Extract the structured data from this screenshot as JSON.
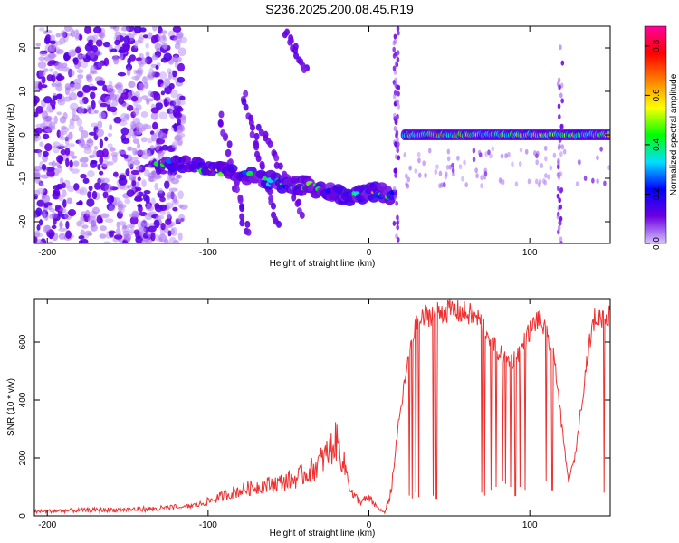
{
  "figure": {
    "title": "S236.2025.200.08.45.R19"
  },
  "chart_data": [
    {
      "type": "heatmap",
      "name": "spectrogram",
      "xlabel": "Height of straight line (km)",
      "ylabel": "Frequency (Hz)",
      "xlim": [
        -208,
        150
      ],
      "ylim": [
        -25,
        25
      ],
      "xticks": [
        -200,
        -100,
        0,
        100
      ],
      "yticks": [
        -20,
        -10,
        0,
        10,
        20
      ],
      "colorbar": {
        "label": "Normalized spectral amplitude",
        "range": [
          0.0,
          0.88
        ],
        "ticks": [
          "0.0",
          "0.2",
          "0.4",
          "0.6",
          "0.8"
        ],
        "colormap": [
          "#d7c4ff",
          "#6b00e0",
          "#0000ff",
          "#00e0ff",
          "#00ff00",
          "#ffff00",
          "#ff8000",
          "#ff0000",
          "#ff00a0"
        ]
      },
      "features": {
        "noise_region_x": [
          -208,
          -125
        ],
        "main_track": {
          "x": [
            -130,
            -110,
            -95,
            -85,
            -70,
            -55,
            -45,
            -35,
            -25,
            -15,
            -5,
            5,
            15
          ],
          "y": [
            -6,
            -7,
            -8,
            -9,
            -9.5,
            -11,
            -11.5,
            -12,
            -13,
            -14,
            -14,
            -13,
            -14
          ]
        },
        "steady_line": {
          "x_range": [
            22,
            150
          ],
          "y": 0
        },
        "vertical_band_x": [
          17,
          119
        ]
      }
    },
    {
      "type": "line",
      "name": "snr",
      "xlabel": "Height of straight line (km)",
      "ylabel": "SNR (10 * v/v)",
      "xlim": [
        -208,
        150
      ],
      "ylim": [
        0,
        750
      ],
      "xticks": [
        -200,
        -100,
        0,
        100
      ],
      "yticks": [
        0,
        200,
        400,
        600
      ],
      "color": "#ee3030",
      "envelope_x": [
        -208,
        -190,
        -170,
        -150,
        -130,
        -115,
        -105,
        -95,
        -85,
        -75,
        -65,
        -55,
        -45,
        -35,
        -28,
        -20,
        -14,
        -10,
        -5,
        0,
        5,
        10,
        14,
        18,
        22,
        26,
        30,
        35,
        40,
        45,
        50,
        55,
        60,
        65,
        70,
        75,
        80,
        85,
        90,
        95,
        100,
        105,
        108,
        112,
        116,
        120,
        124,
        128,
        132,
        136,
        140,
        145,
        150
      ],
      "envelope_y": [
        15,
        18,
        20,
        22,
        25,
        30,
        40,
        60,
        80,
        95,
        105,
        115,
        130,
        160,
        200,
        260,
        150,
        70,
        50,
        60,
        30,
        10,
        90,
        300,
        450,
        600,
        660,
        690,
        700,
        705,
        710,
        705,
        700,
        690,
        670,
        620,
        570,
        540,
        540,
        580,
        640,
        680,
        660,
        600,
        520,
        300,
        120,
        200,
        380,
        560,
        680,
        690,
        690
      ],
      "dropouts": [
        {
          "x": 25,
          "y": 70
        },
        {
          "x": 27,
          "y": 60
        },
        {
          "x": 29,
          "y": 80
        },
        {
          "x": 31,
          "y": 65
        },
        {
          "x": 40,
          "y": 70
        },
        {
          "x": 42,
          "y": 60
        },
        {
          "x": 70,
          "y": 80
        },
        {
          "x": 72,
          "y": 70
        },
        {
          "x": 76,
          "y": 90
        },
        {
          "x": 79,
          "y": 100
        },
        {
          "x": 83,
          "y": 120
        },
        {
          "x": 85,
          "y": 110
        },
        {
          "x": 88,
          "y": 100
        },
        {
          "x": 91,
          "y": 70
        },
        {
          "x": 94,
          "y": 100
        },
        {
          "x": 97,
          "y": 90
        },
        {
          "x": 110,
          "y": 120
        },
        {
          "x": 114,
          "y": 90
        },
        {
          "x": 146,
          "y": 80
        }
      ]
    }
  ]
}
